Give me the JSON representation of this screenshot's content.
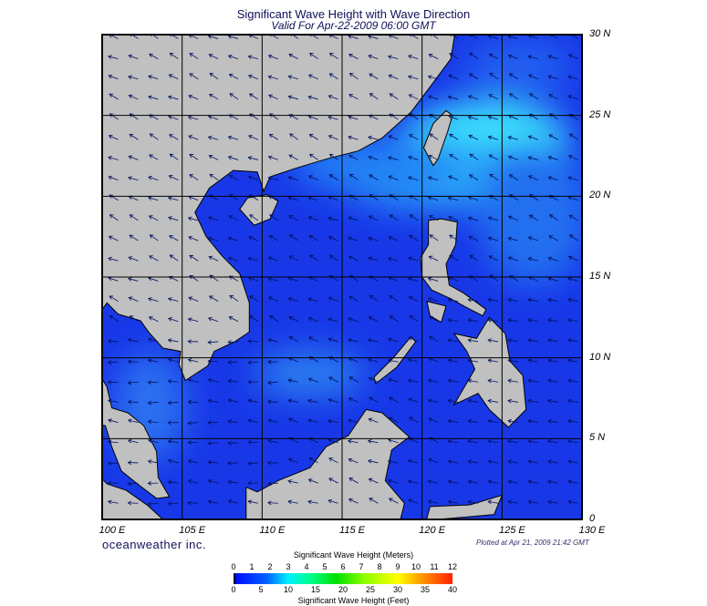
{
  "title": "Significant Wave Height with Wave Direction",
  "subtitle": "Valid For Apr-22-2009 06:00 GMT",
  "map": {
    "lon_range": [
      100,
      130
    ],
    "lat_range": [
      0,
      30
    ],
    "grid_step_deg": 5,
    "lon_labels": [
      "100 E",
      "105 E",
      "110 E",
      "115 E",
      "120 E",
      "125 E",
      "130 E"
    ],
    "lat_labels": [
      "30 N",
      "25 N",
      "20 N",
      "15 N",
      "10 N",
      "5 N",
      "0"
    ],
    "colors": {
      "land": "#c0c0c0",
      "sea_base": "#1838e8",
      "sea_high": "#30d8f0"
    }
  },
  "brand": "oceanweather inc.",
  "plotted": "Plotted at Apr 21, 2009 21:42 GMT",
  "colorbar": {
    "title_top": "Significant Wave Height (Meters)",
    "ticks_top": [
      "0",
      "1",
      "2",
      "3",
      "4",
      "5",
      "6",
      "7",
      "8",
      "9",
      "10",
      "11",
      "12"
    ],
    "ticks_bottom": [
      "0",
      "5",
      "10",
      "15",
      "20",
      "25",
      "30",
      "35",
      "40"
    ],
    "title_bottom": "Significant Wave Height (Feet)"
  }
}
